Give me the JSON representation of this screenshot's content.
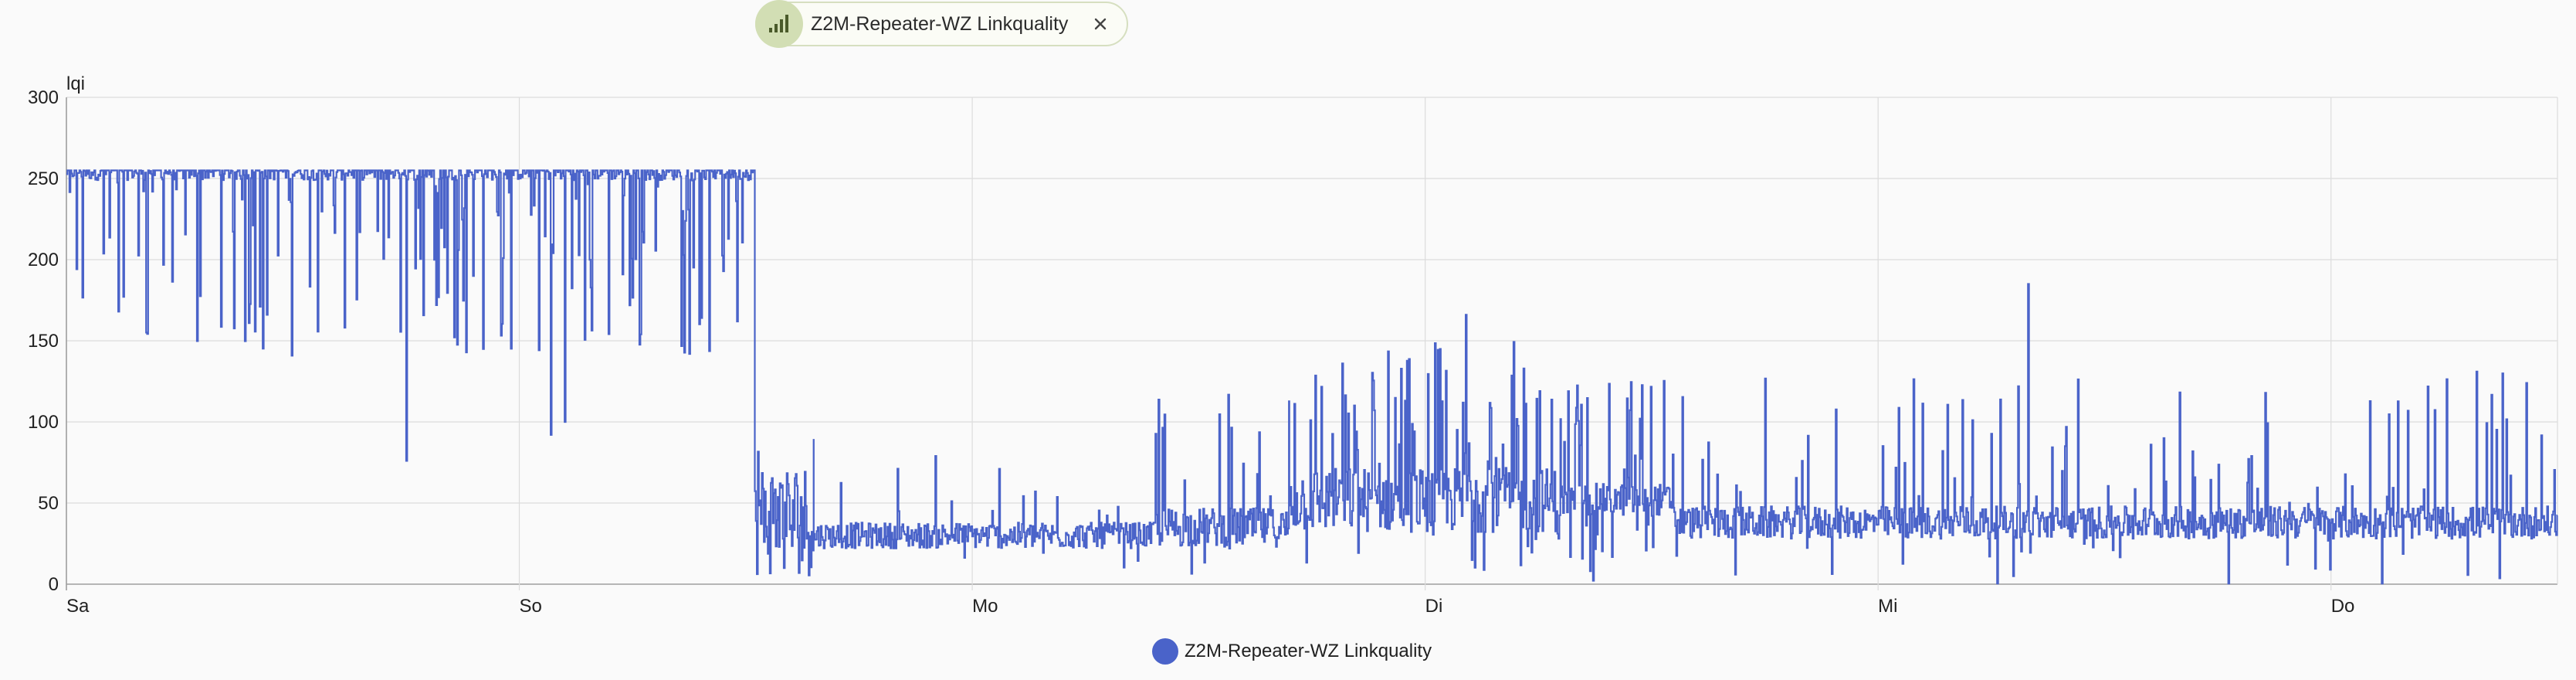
{
  "chip": {
    "label": "Z2M-Repeater-WZ Linkquality",
    "icon": "signal-bars-icon",
    "close_icon": "close-icon"
  },
  "legend": {
    "label": "Z2M-Repeater-WZ Linkquality",
    "color": "#4a63c9"
  },
  "chart_data": {
    "type": "line",
    "ylabel": "lqi",
    "ylim": [
      0,
      300
    ],
    "yticks": [
      0,
      50,
      100,
      150,
      200,
      250,
      300
    ],
    "xlim": [
      0,
      5.5
    ],
    "xticks": [
      {
        "label": "Sa",
        "x": 0
      },
      {
        "label": "So",
        "x": 1
      },
      {
        "label": "Mo",
        "x": 2
      },
      {
        "label": "Di",
        "x": 3
      },
      {
        "label": "Mi",
        "x": 4
      },
      {
        "label": "Do",
        "x": 5
      }
    ],
    "grid": true,
    "legend_placement": "bottom",
    "series": [
      {
        "name": "Z2M-Repeater-WZ Linkquality",
        "color": "#4a63c9",
        "segments": [
          {
            "start": 0.0,
            "end": 1.52,
            "base": 255,
            "noise": 6,
            "dropRate": 0.18,
            "dropMin": 140,
            "dropMax": 255
          },
          {
            "start": 1.52,
            "end": 1.65,
            "base": 40,
            "noise": 35,
            "dropRate": 0.25,
            "dropMin": 5,
            "dropMax": 115
          },
          {
            "start": 1.65,
            "end": 2.4,
            "base": 30,
            "noise": 8,
            "dropRate": 0.06,
            "dropMin": 10,
            "dropMax": 80
          },
          {
            "start": 2.4,
            "end": 2.7,
            "base": 35,
            "noise": 12,
            "dropRate": 0.12,
            "dropMin": 5,
            "dropMax": 130
          },
          {
            "start": 2.7,
            "end": 3.3,
            "base": 52,
            "noise": 20,
            "dropRate": 0.35,
            "dropMin": 0,
            "dropMax": 150
          },
          {
            "start": 3.3,
            "end": 3.55,
            "base": 52,
            "noise": 10,
            "dropRate": 0.25,
            "dropMin": 0,
            "dropMax": 130
          },
          {
            "start": 3.55,
            "end": 5.5,
            "base": 38,
            "noise": 10,
            "dropRate": 0.12,
            "dropMin": 0,
            "dropMax": 130
          }
        ],
        "peaks": [
          {
            "x": 0.75,
            "y": 76
          },
          {
            "x": 1.07,
            "y": 92
          },
          {
            "x": 1.1,
            "y": 100
          },
          {
            "x": 3.09,
            "y": 166
          },
          {
            "x": 4.33,
            "y": 185
          },
          {
            "x": 4.31,
            "y": 122
          },
          {
            "x": 5.32,
            "y": 131
          },
          {
            "x": 5.43,
            "y": 124
          }
        ]
      }
    ]
  }
}
